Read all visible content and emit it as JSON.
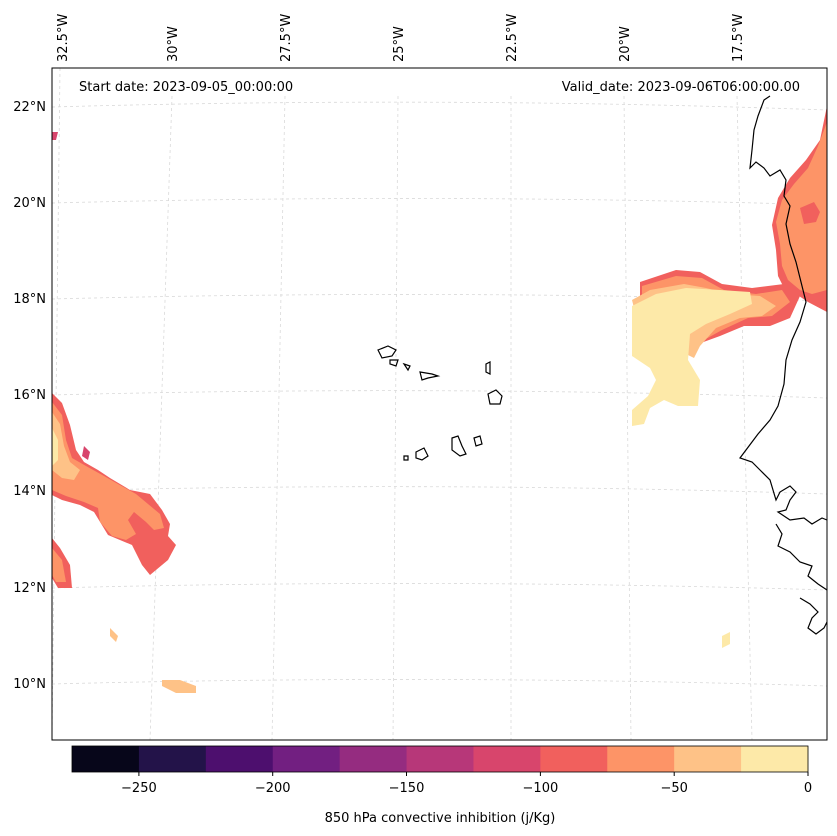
{
  "map": {
    "start_date_text": "Start date: 2023-09-05_00:00:00",
    "valid_date_text": "Valid_date: 2023-09-06T06:00:00.00",
    "longitude_labels": [
      "32.5°W",
      "30°W",
      "27.5°W",
      "25°W",
      "22.5°W",
      "20°W",
      "17.5°W"
    ],
    "latitude_labels": [
      "22°N",
      "20°N",
      "18°N",
      "16°N",
      "14°N",
      "12°N",
      "10°N"
    ],
    "region": "Cape Verde islands and West African coast"
  },
  "colorbar": {
    "label": "850 hPa convective inhibition (j/Kg)",
    "tick_labels": [
      "−250",
      "−200",
      "−150",
      "−100",
      "−50",
      "0"
    ],
    "levels": [
      -275,
      -250,
      -225,
      -200,
      -175,
      -150,
      -125,
      -100,
      -75,
      -50,
      -25,
      0
    ],
    "colors": [
      "#07061a",
      "#231349",
      "#4d0f6e",
      "#721f81",
      "#952c80",
      "#b73779",
      "#d8456c",
      "#f1605d",
      "#fd9467",
      "#fec287",
      "#fde9a8"
    ]
  },
  "palette": {
    "coastline": "#000000",
    "gridline": "#cccccc"
  }
}
